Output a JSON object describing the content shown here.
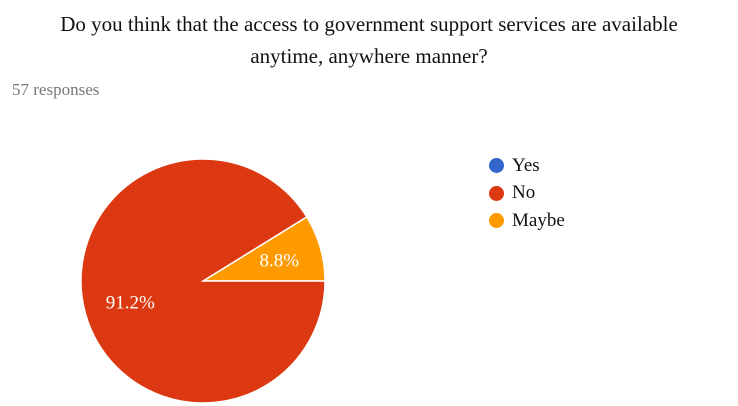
{
  "chart_data": {
    "type": "pie",
    "title_line1": "Do you think that the access to government support services are available",
    "title_line2": "anytime, anywhere manner?",
    "subtitle": "57 responses",
    "categories": [
      "Yes",
      "No",
      "Maybe"
    ],
    "values": [
      0,
      91.2,
      8.8
    ],
    "value_labels": [
      "",
      "91.2%",
      "8.8%"
    ],
    "colors": [
      "#3366cc",
      "#dc3912",
      "#ff9900"
    ],
    "legend": "right"
  }
}
